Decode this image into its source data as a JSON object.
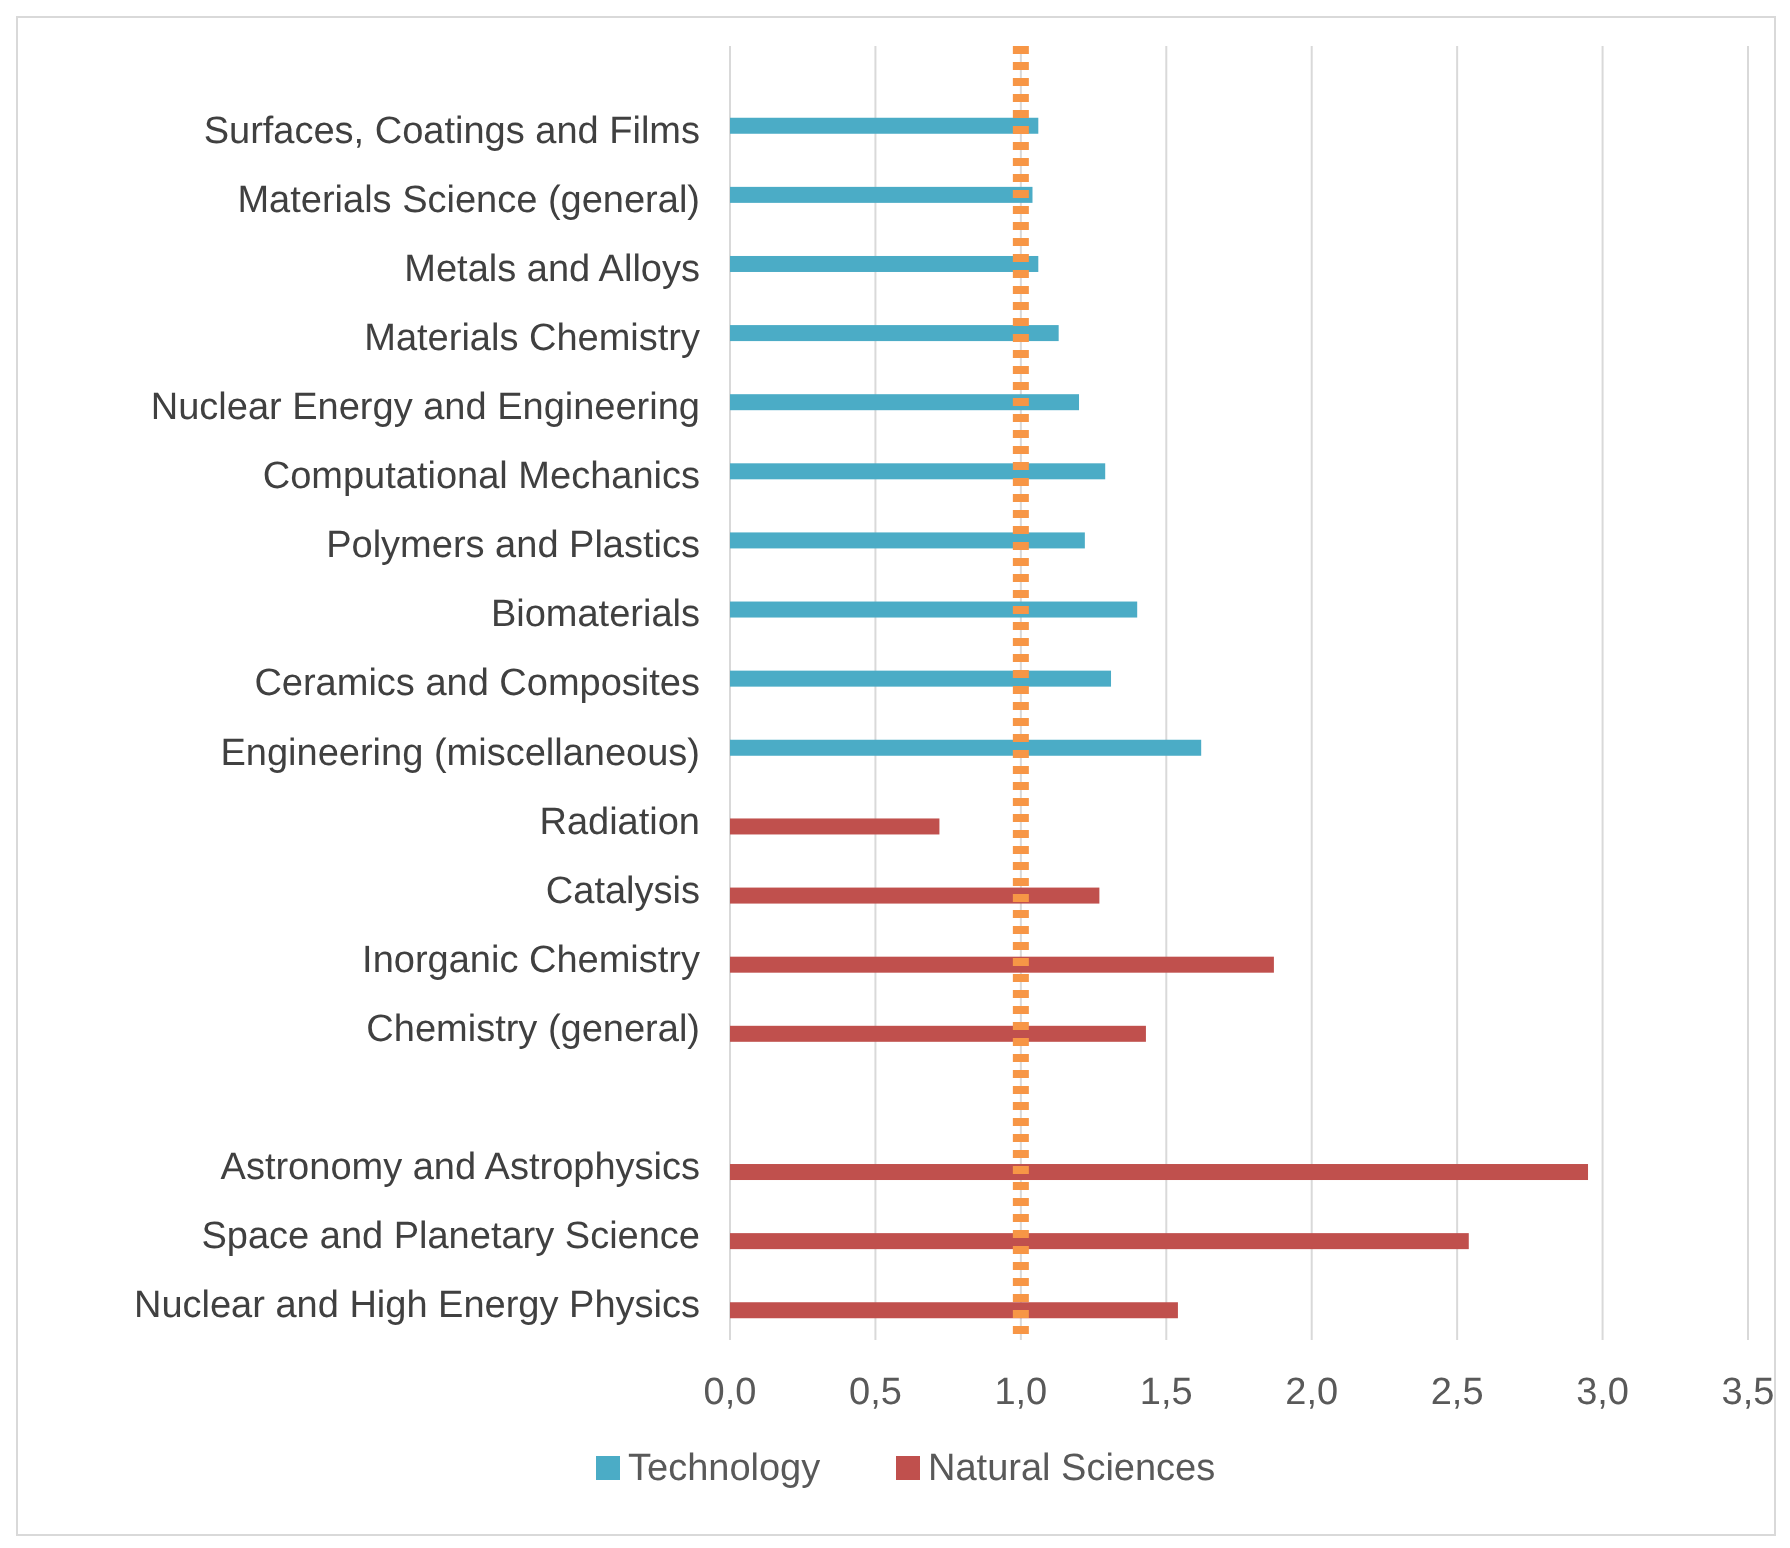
{
  "chart_data": {
    "type": "bar",
    "orientation": "horizontal",
    "categories": [
      "Surfaces, Coatings and Films",
      "Materials Science (general)",
      "Metals and Alloys",
      "Materials Chemistry",
      "Nuclear Energy and Engineering",
      "Computational Mechanics",
      "Polymers and Plastics",
      "Biomaterials",
      "Ceramics and Composites",
      "Engineering (miscellaneous)",
      "Radiation",
      "Catalysis",
      "Inorganic Chemistry",
      "Chemistry (general)",
      null,
      "Astronomy and Astrophysics",
      "Space and Planetary Science",
      "Nuclear and High Energy Physics"
    ],
    "series": [
      {
        "name": "Technology",
        "color": "#4bacc6",
        "values": [
          1.06,
          1.04,
          1.06,
          1.13,
          1.2,
          1.29,
          1.22,
          1.4,
          1.31,
          1.62,
          null,
          null,
          null,
          null,
          null,
          null,
          null,
          null
        ]
      },
      {
        "name": "Natural Sciences",
        "color": "#c0504d",
        "values": [
          null,
          null,
          null,
          null,
          null,
          null,
          null,
          null,
          null,
          null,
          0.72,
          1.27,
          1.87,
          1.43,
          null,
          2.95,
          2.54,
          1.54
        ]
      }
    ],
    "xlim": [
      0,
      3.5
    ],
    "xticks": [
      {
        "value": 0,
        "label": "0,0"
      },
      {
        "value": 0.5,
        "label": "0,5"
      },
      {
        "value": 1,
        "label": "1,0"
      },
      {
        "value": 1.5,
        "label": "1,5"
      },
      {
        "value": 2,
        "label": "2,0"
      },
      {
        "value": 2.5,
        "label": "2,5"
      },
      {
        "value": 3,
        "label": "3,0"
      },
      {
        "value": 3.5,
        "label": "3,5"
      }
    ],
    "grid": "x",
    "legend": "bottom",
    "ref_lines": [
      {
        "axis": "x",
        "value": 1,
        "color": "#f79646",
        "line_style": "dotted"
      }
    ]
  }
}
